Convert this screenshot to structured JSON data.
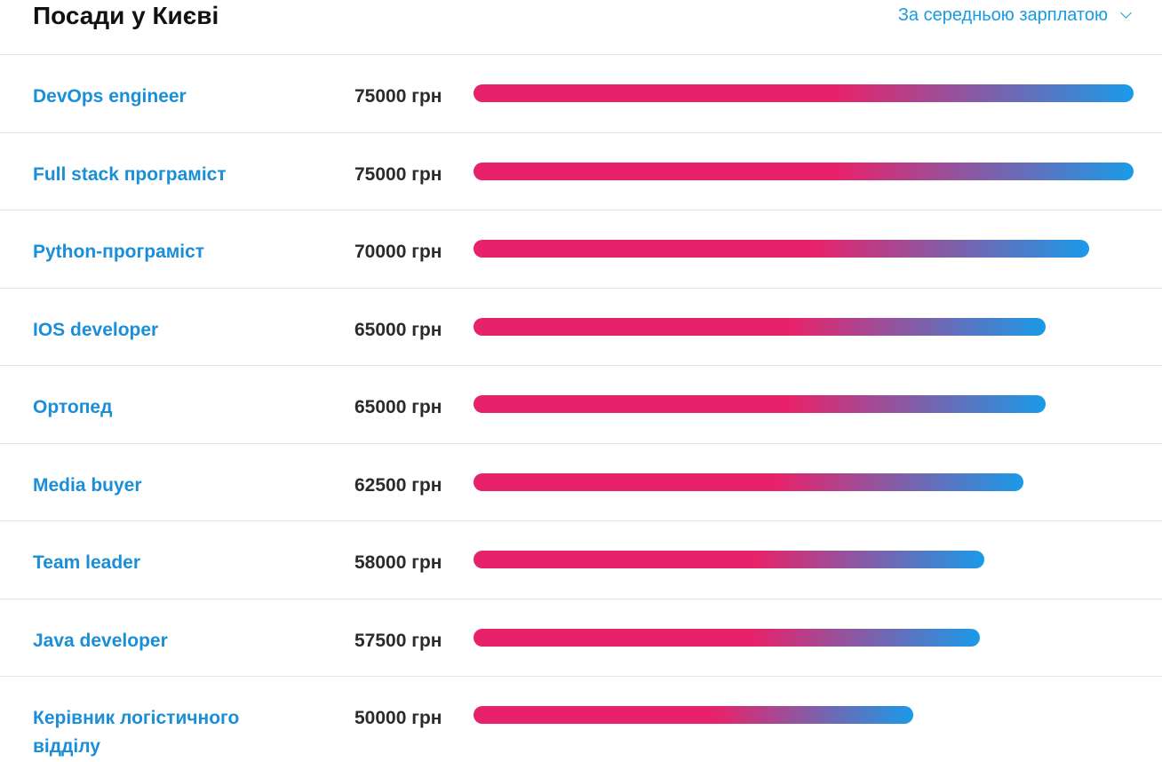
{
  "header": {
    "title": "Посади у Києві",
    "sort_label": "За середньою зарплатою",
    "sort_icon": "chevron-down-icon"
  },
  "colors": {
    "link": "#1a8fd8",
    "bar_start": "#e8226a",
    "bar_end": "#1a9ae8"
  },
  "max_salary": 75000,
  "jobs": [
    {
      "title": "DevOps engineer",
      "salary": "75000 грн",
      "value": 75000
    },
    {
      "title": "Full stack програміст",
      "salary": "75000 грн",
      "value": 75000
    },
    {
      "title": "Python-програміст",
      "salary": "70000 грн",
      "value": 70000
    },
    {
      "title": "IOS developer",
      "salary": "65000 грн",
      "value": 65000
    },
    {
      "title": "Ортопед",
      "salary": "65000 грн",
      "value": 65000
    },
    {
      "title": "Media buyer",
      "salary": "62500 грн",
      "value": 62500
    },
    {
      "title": "Team leader",
      "salary": "58000 грн",
      "value": 58000
    },
    {
      "title": "Java developer",
      "salary": "57500 грн",
      "value": 57500
    },
    {
      "title": "Керівник логістичного відділу",
      "salary": "50000 грн",
      "value": 50000
    }
  ]
}
